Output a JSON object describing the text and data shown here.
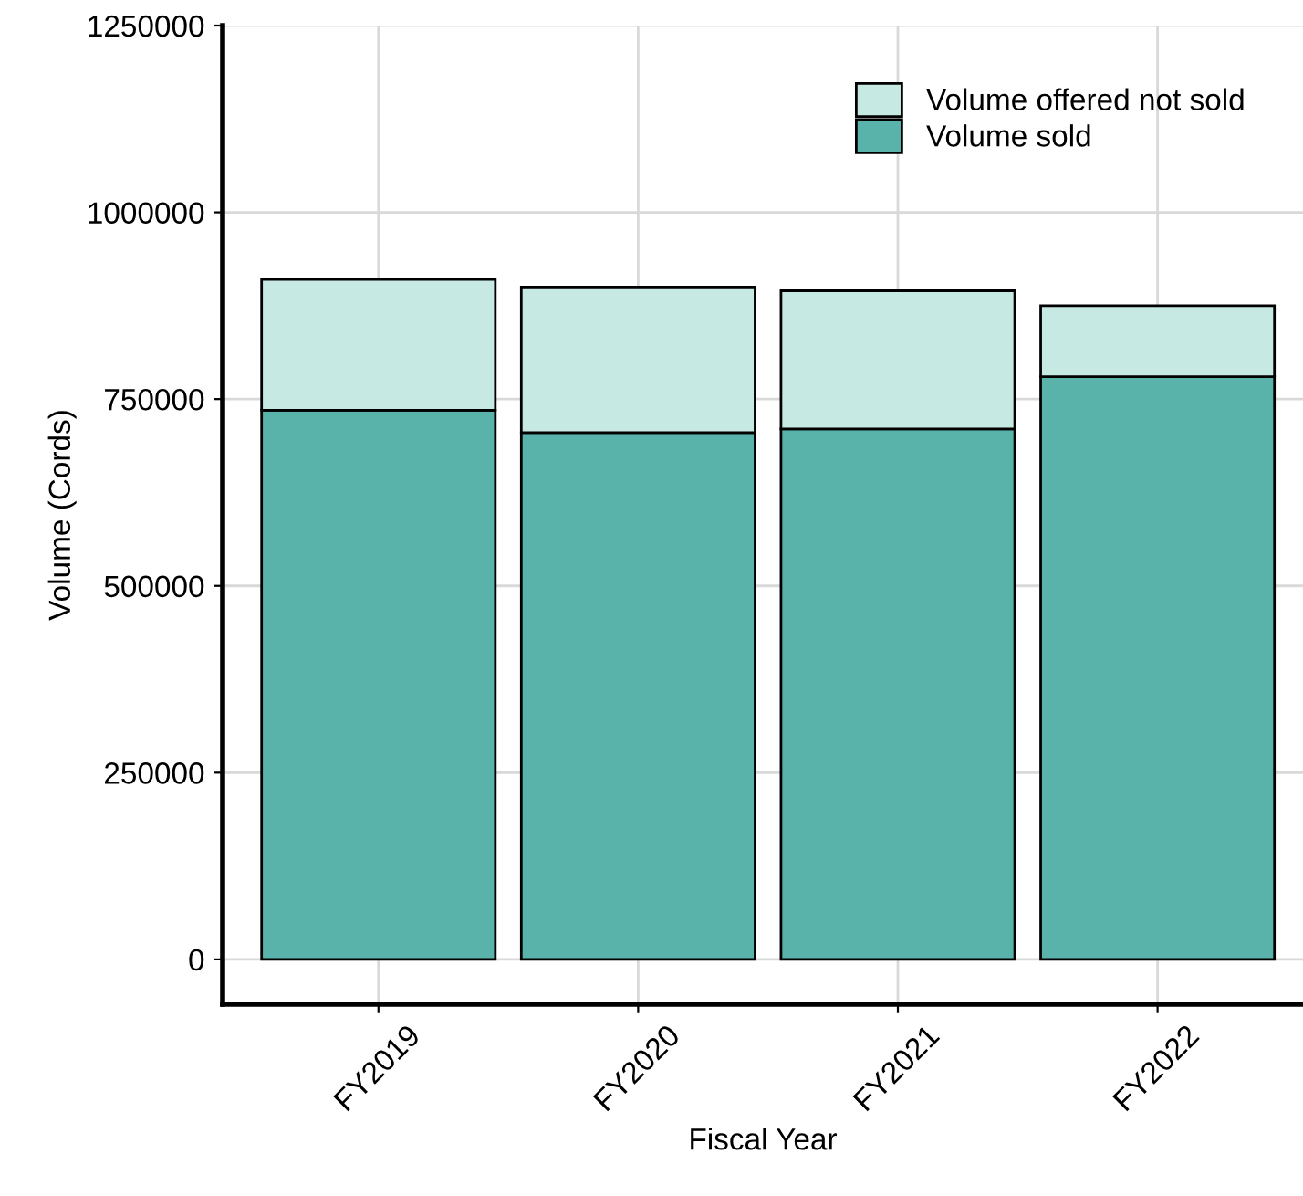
{
  "chart_data": {
    "type": "bar",
    "stacked": true,
    "xlabel": "Fiscal Year",
    "ylabel": "Volume (Cords)",
    "categories": [
      "FY2019",
      "FY2020",
      "FY2021",
      "FY2022"
    ],
    "series": [
      {
        "name": "Volume sold",
        "color": "#5ab3aa",
        "values": [
          735000,
          705000,
          710000,
          780000
        ]
      },
      {
        "name": "Volume offered not sold",
        "color": "#c6e9e3",
        "values": [
          175000,
          195000,
          185000,
          95000
        ]
      }
    ],
    "ylim": [
      -60000,
      1250000
    ],
    "yticks": [
      0,
      250000,
      500000,
      750000,
      1000000,
      1250000
    ],
    "grid": true,
    "legend": "top right"
  }
}
